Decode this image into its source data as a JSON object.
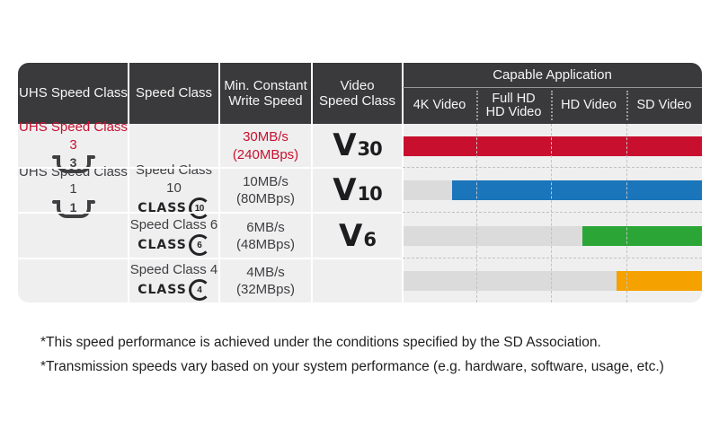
{
  "colors": {
    "header_bg": "#3a3a3c",
    "row_bg": "#efeff0",
    "track_gray": "#dbdbdc",
    "red": "#c8102e",
    "blue": "#1b75bb",
    "green": "#2ba636",
    "orange": "#f5a100",
    "text_dark": "#3f3f42"
  },
  "table": {
    "class_word": "CLASS",
    "headers": {
      "uhs": "UHS Speed Class",
      "speed": "Speed Class",
      "write": "Min. Constant\nWrite Speed",
      "video": "Video\nSpeed Class",
      "capable": "Capable Application",
      "capable_sub": [
        "4K Video",
        "Full HD\nHD Video",
        "HD Video",
        "SD Video"
      ]
    },
    "rows": [
      {
        "uhs_label": "UHS Speed Class 3",
        "uhs_icon_digit": "3",
        "speed_label": "",
        "class_icon_digit": "",
        "write_speed": "30MB/s\n(240MBps)",
        "video_v": "V",
        "video_num": "30",
        "bar": {
          "color": "#c8102e",
          "start_pct": 0
        }
      },
      {
        "uhs_label": "UHS Speed Class 1",
        "uhs_icon_digit": "1",
        "speed_label": "Speed Class 10",
        "class_icon_digit": "10",
        "write_speed": "10MB/s\n(80MBps)",
        "video_v": "V",
        "video_num": "10",
        "bar": {
          "color": "#1b75bb",
          "start_pct": 16.5
        }
      },
      {
        "uhs_label": "",
        "uhs_icon_digit": "",
        "speed_label": "Speed Class 6",
        "class_icon_digit": "6",
        "write_speed": "6MB/s\n(48MBps)",
        "video_v": "V",
        "video_num": "6",
        "bar": {
          "color": "#2ba636",
          "start_pct": 60
        }
      },
      {
        "uhs_label": "",
        "uhs_icon_digit": "",
        "speed_label": "Speed Class 4",
        "class_icon_digit": "4",
        "write_speed": "4MB/s\n(32MBps)",
        "video_v": "",
        "video_num": "",
        "bar": {
          "color": "#f5a100",
          "start_pct": 71.5
        }
      }
    ]
  },
  "footnotes": [
    "*This speed performance is achieved under the conditions specified by the SD Association.",
    "*Transmission speeds vary based on your system performance (e.g. hardware, software, usage, etc.)"
  ],
  "chart_data": {
    "type": "table",
    "title": "Capable Application",
    "columns": [
      "UHS Speed Class",
      "Speed Class",
      "Min. Constant Write Speed",
      "Video Speed Class",
      "Capable Application"
    ],
    "capable_application_columns": [
      "4K Video",
      "Full HD HD Video",
      "HD Video",
      "SD Video"
    ],
    "rows": [
      {
        "uhs_speed_class": "UHS Speed Class 3 (U3)",
        "speed_class": "",
        "min_constant_write_speed": "30MB/s (240MBps)",
        "video_speed_class": "V30",
        "capability": {
          "color": "#c8102e",
          "coverage": "4K Video through SD Video",
          "bar_start_pct": 0,
          "bar_end_pct": 100
        }
      },
      {
        "uhs_speed_class": "UHS Speed Class 1 (U1)",
        "speed_class": "Speed Class 10 (CLASS 10)",
        "min_constant_write_speed": "10MB/s (80MBps)",
        "video_speed_class": "V10",
        "capability": {
          "color": "#1b75bb",
          "coverage": "partial 4K Video through SD Video",
          "bar_start_pct": 16.5,
          "bar_end_pct": 100
        }
      },
      {
        "uhs_speed_class": "",
        "speed_class": "Speed Class 6 (CLASS 6)",
        "min_constant_write_speed": "6MB/s (48MBps)",
        "video_speed_class": "V6",
        "capability": {
          "color": "#2ba636",
          "coverage": "partial HD Video through SD Video",
          "bar_start_pct": 60,
          "bar_end_pct": 100
        }
      },
      {
        "uhs_speed_class": "",
        "speed_class": "Speed Class 4 (CLASS 4)",
        "min_constant_write_speed": "4MB/s (32MBps)",
        "video_speed_class": "",
        "capability": {
          "color": "#f5a100",
          "coverage": "SD Video",
          "bar_start_pct": 71.5,
          "bar_end_pct": 100
        }
      }
    ],
    "footnotes": [
      "*This speed performance is achieved under the conditions specified by the SD Association.",
      "*Transmission speeds vary based on your system performance (e.g. hardware, software, usage, etc.)"
    ],
    "layout_hints": {
      "grid": "dashed separators in capable-application area",
      "bars_right_aligned": true
    }
  }
}
